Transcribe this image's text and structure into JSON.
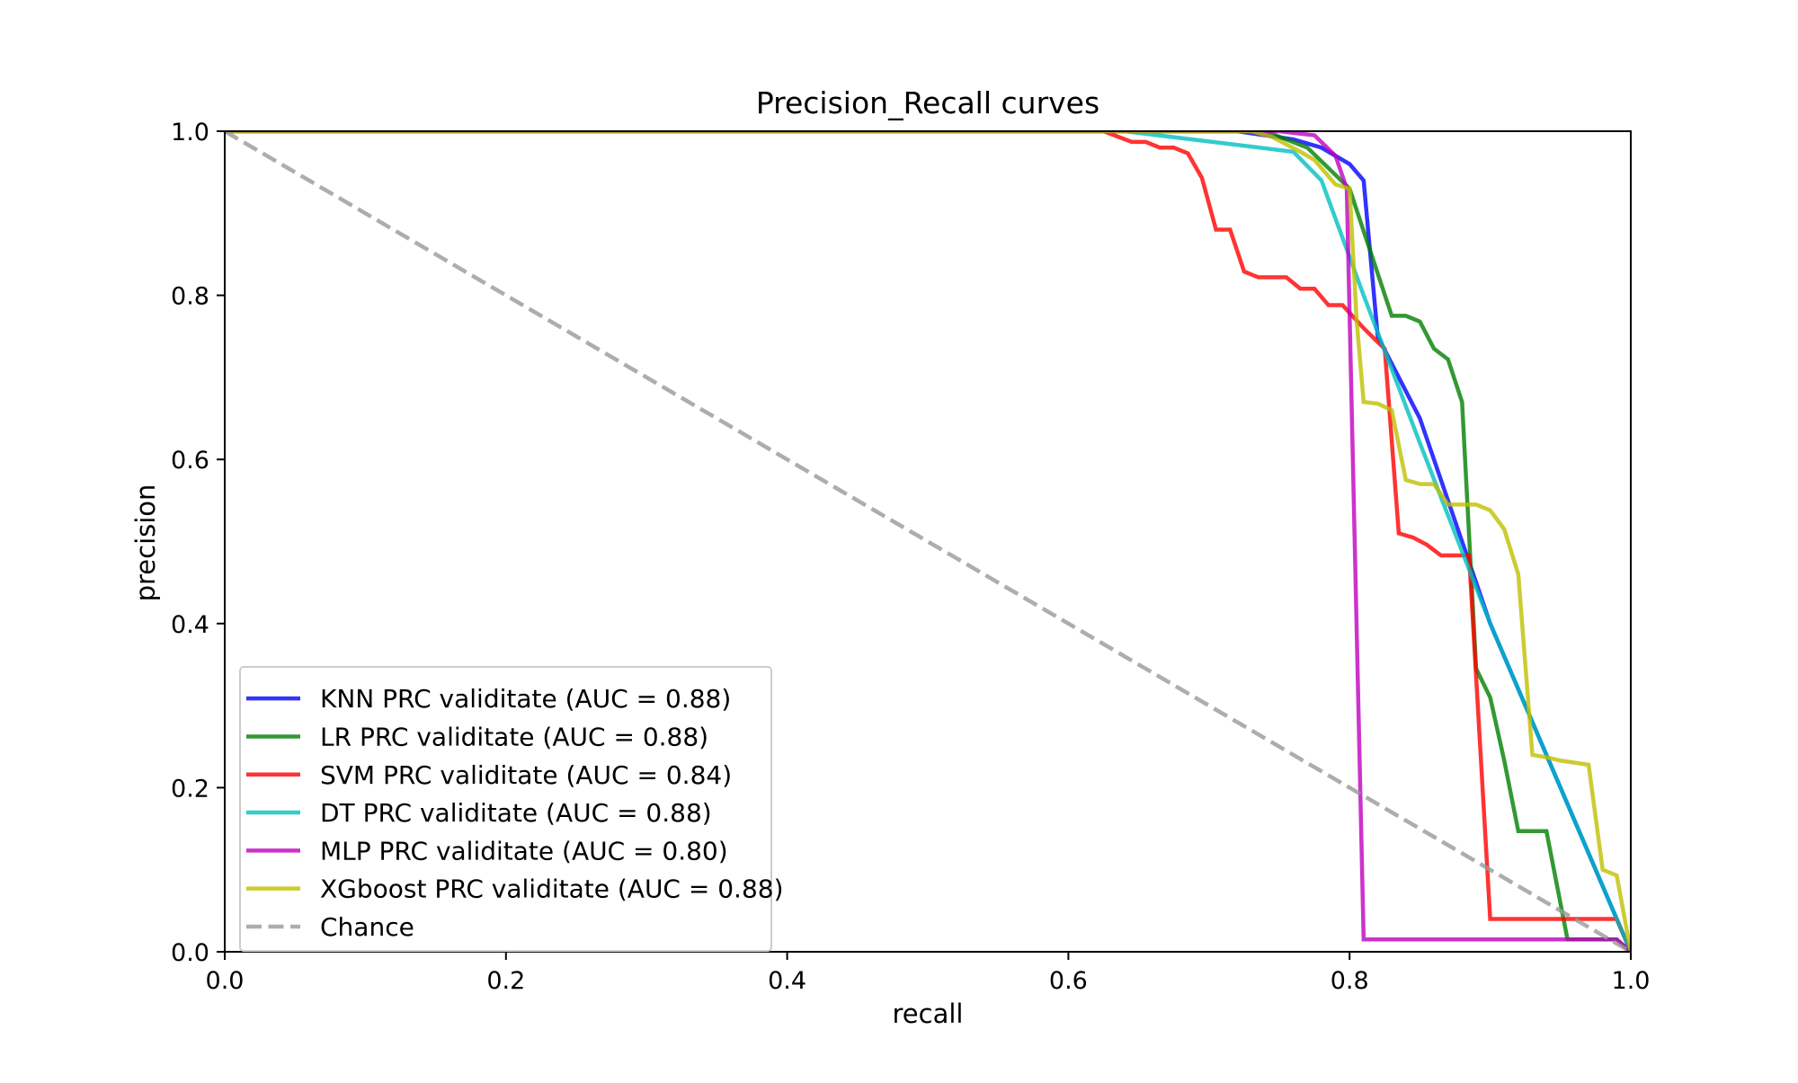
{
  "chart_data": {
    "type": "line",
    "title": "Precision_Recall curves",
    "xlabel": "recall",
    "ylabel": "precision",
    "xlim": [
      0.0,
      1.0
    ],
    "ylim": [
      0.0,
      1.0
    ],
    "xticks": [
      "0.0",
      "0.2",
      "0.4",
      "0.6",
      "0.8",
      "1.0"
    ],
    "yticks": [
      "0.0",
      "0.2",
      "0.4",
      "0.6",
      "0.8",
      "1.0"
    ],
    "grid": false,
    "legend_position": "lower-left",
    "series": [
      {
        "name": "KNN PRC validitate (AUC = 0.88)",
        "color": "#0000ff",
        "points": [
          [
            0.0,
            1.0
          ],
          [
            0.72,
            1.0
          ],
          [
            0.76,
            0.99
          ],
          [
            0.78,
            0.98
          ],
          [
            0.8,
            0.96
          ],
          [
            0.81,
            0.94
          ],
          [
            0.82,
            0.75
          ],
          [
            0.85,
            0.65
          ],
          [
            0.9,
            0.4
          ],
          [
            1.0,
            0.0
          ]
        ]
      },
      {
        "name": "LR PRC validitate (AUC = 0.88)",
        "color": "#008000",
        "points": [
          [
            0.0,
            1.0
          ],
          [
            0.74,
            1.0
          ],
          [
            0.77,
            0.98
          ],
          [
            0.8,
            0.93
          ],
          [
            0.83,
            0.775
          ],
          [
            0.84,
            0.775
          ],
          [
            0.85,
            0.768
          ],
          [
            0.86,
            0.735
          ],
          [
            0.87,
            0.722
          ],
          [
            0.88,
            0.67
          ],
          [
            0.89,
            0.345
          ],
          [
            0.9,
            0.31
          ],
          [
            0.91,
            0.233
          ],
          [
            0.92,
            0.147
          ],
          [
            0.94,
            0.147
          ],
          [
            0.955,
            0.015
          ],
          [
            0.99,
            0.015
          ],
          [
            1.0,
            0.0
          ]
        ]
      },
      {
        "name": "SVM PRC validitate (AUC = 0.84)",
        "color": "#ff0000",
        "points": [
          [
            0.0,
            1.0
          ],
          [
            0.625,
            1.0
          ],
          [
            0.645,
            0.987
          ],
          [
            0.655,
            0.987
          ],
          [
            0.665,
            0.98
          ],
          [
            0.675,
            0.98
          ],
          [
            0.685,
            0.973
          ],
          [
            0.695,
            0.943
          ],
          [
            0.705,
            0.88
          ],
          [
            0.715,
            0.88
          ],
          [
            0.725,
            0.829
          ],
          [
            0.735,
            0.822
          ],
          [
            0.755,
            0.822
          ],
          [
            0.765,
            0.808
          ],
          [
            0.775,
            0.808
          ],
          [
            0.785,
            0.788
          ],
          [
            0.795,
            0.788
          ],
          [
            0.81,
            0.76
          ],
          [
            0.82,
            0.743
          ],
          [
            0.825,
            0.735
          ],
          [
            0.835,
            0.51
          ],
          [
            0.845,
            0.505
          ],
          [
            0.855,
            0.496
          ],
          [
            0.865,
            0.483
          ],
          [
            0.885,
            0.483
          ],
          [
            0.9,
            0.04
          ],
          [
            0.99,
            0.04
          ],
          [
            1.0,
            0.0
          ]
        ]
      },
      {
        "name": "DT PRC validitate (AUC = 0.88)",
        "color": "#00bfbf",
        "points": [
          [
            0.0,
            1.0
          ],
          [
            0.64,
            1.0
          ],
          [
            0.76,
            0.975
          ],
          [
            0.78,
            0.94
          ],
          [
            0.81,
            0.8
          ],
          [
            0.85,
            0.62
          ],
          [
            0.9,
            0.4
          ],
          [
            1.0,
            0.0
          ]
        ]
      },
      {
        "name": "MLP PRC validitate (AUC = 0.80)",
        "color": "#bf00bf",
        "points": [
          [
            0.0,
            1.0
          ],
          [
            0.75,
            1.0
          ],
          [
            0.775,
            0.995
          ],
          [
            0.79,
            0.97
          ],
          [
            0.798,
            0.93
          ],
          [
            0.81,
            0.015
          ],
          [
            0.99,
            0.015
          ],
          [
            1.0,
            0.0
          ]
        ]
      },
      {
        "name": "XGboost PRC validitate (AUC = 0.88)",
        "color": "#bfbf00",
        "points": [
          [
            0.0,
            1.0
          ],
          [
            0.73,
            1.0
          ],
          [
            0.745,
            0.993
          ],
          [
            0.765,
            0.975
          ],
          [
            0.775,
            0.965
          ],
          [
            0.79,
            0.935
          ],
          [
            0.8,
            0.93
          ],
          [
            0.805,
            0.77
          ],
          [
            0.81,
            0.67
          ],
          [
            0.82,
            0.668
          ],
          [
            0.83,
            0.66
          ],
          [
            0.84,
            0.575
          ],
          [
            0.85,
            0.57
          ],
          [
            0.86,
            0.57
          ],
          [
            0.87,
            0.545
          ],
          [
            0.89,
            0.545
          ],
          [
            0.9,
            0.538
          ],
          [
            0.91,
            0.515
          ],
          [
            0.92,
            0.46
          ],
          [
            0.93,
            0.24
          ],
          [
            0.94,
            0.237
          ],
          [
            0.95,
            0.233
          ],
          [
            0.97,
            0.228
          ],
          [
            0.98,
            0.1
          ],
          [
            0.99,
            0.093
          ],
          [
            1.0,
            0.0
          ]
        ]
      },
      {
        "name": "Chance",
        "color": "#999999",
        "dashed": true,
        "points": [
          [
            0.0,
            1.0
          ],
          [
            1.0,
            0.0
          ]
        ]
      }
    ]
  }
}
